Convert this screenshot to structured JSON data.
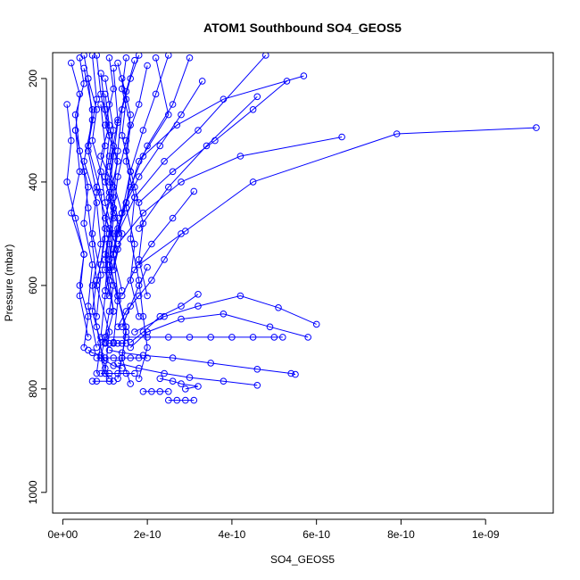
{
  "chart_data": {
    "type": "line",
    "title": "ATOM1 Southbound SO4_GEOS5",
    "xlabel": "SO4_GEOS5",
    "ylabel": "Pressure (mbar)",
    "xlim": [
      -2.4e-11,
      1.16e-09
    ],
    "ylim": [
      1040,
      150
    ],
    "y_reversed": true,
    "grid": false,
    "legend": "none",
    "marker": "open-circle",
    "color": "#0000ff",
    "x_ticks": [
      {
        "value": 0,
        "label": "0e+00"
      },
      {
        "value": 2e-10,
        "label": "2e-10"
      },
      {
        "value": 4e-10,
        "label": "4e-10"
      },
      {
        "value": 6e-10,
        "label": "6e-10"
      },
      {
        "value": 8e-10,
        "label": "8e-10"
      },
      {
        "value": 1e-09,
        "label": "1e-09"
      }
    ],
    "y_ticks": [
      {
        "value": 200,
        "label": "200"
      },
      {
        "value": 400,
        "label": "400"
      },
      {
        "value": 600,
        "label": "600"
      },
      {
        "value": 800,
        "label": "800"
      },
      {
        "value": 1000,
        "label": "1000"
      }
    ],
    "series": [
      {
        "x": [
          1e-10,
          1.1e-10,
          1.2e-10,
          1.1e-10,
          1e-10,
          1.2e-10,
          1.1e-10,
          1e-10,
          1.2e-10,
          1.1e-10,
          1e-10,
          9e-11,
          1e-10,
          1.1e-10
        ],
        "y": [
          200,
          250,
          300,
          350,
          400,
          450,
          500,
          550,
          600,
          650,
          700,
          740,
          770,
          780
        ]
      },
      {
        "x": [
          5e-11,
          6e-11,
          8e-11,
          7e-11,
          9e-11,
          1e-10,
          1.2e-10,
          1.1e-10,
          1.3e-10,
          1.5e-10,
          1.4e-10,
          1.3e-10
        ],
        "y": [
          155,
          200,
          260,
          320,
          380,
          440,
          500,
          560,
          620,
          680,
          740,
          780
        ]
      },
      {
        "x": [
          2e-11,
          4e-11,
          3e-11,
          5e-11,
          6e-11,
          7e-11,
          8e-11,
          7e-11,
          9e-11,
          8e-11
        ],
        "y": [
          170,
          230,
          300,
          380,
          450,
          520,
          590,
          650,
          710,
          770
        ]
      },
      {
        "x": [
          1.5e-10,
          1.4e-10,
          1.6e-10,
          1.5e-10,
          1.7e-10,
          1.6e-10,
          1.8e-10,
          1.9e-10,
          2e-10,
          1.8e-10
        ],
        "y": [
          160,
          220,
          290,
          360,
          430,
          510,
          590,
          660,
          720,
          780
        ]
      },
      {
        "x": [
          1e-11,
          2e-11,
          1e-11,
          3e-11,
          5e-11,
          4e-11,
          6e-11,
          5e-11
        ],
        "y": [
          250,
          320,
          400,
          470,
          540,
          600,
          660,
          720
        ]
      },
      {
        "x": [
          2.2e-10,
          2.5e-10,
          1.8e-10,
          1.5e-10,
          1.2e-10,
          1e-10,
          9e-11
        ],
        "y": [
          160,
          270,
          360,
          440,
          530,
          620,
          700
        ]
      },
      {
        "x": [
          1.2e-10,
          1.3e-10,
          1.1e-10,
          1.4e-10,
          1.2e-10,
          1.3e-10,
          1.5e-10,
          1.4e-10,
          1.6e-10
        ],
        "y": [
          180,
          280,
          370,
          460,
          540,
          620,
          690,
          740,
          790
        ]
      },
      {
        "x": [
          7e-11,
          8e-11,
          6e-11,
          9e-11,
          1e-10,
          8e-11,
          1.1e-10,
          1e-10
        ],
        "y": [
          155,
          240,
          330,
          420,
          510,
          600,
          690,
          770
        ]
      },
      {
        "x": [
          1.8e-10,
          1.6e-10,
          1.4e-10,
          1.3e-10,
          1.2e-10,
          1.1e-10,
          1e-10
        ],
        "y": [
          155,
          200,
          260,
          340,
          430,
          520,
          610
        ]
      },
      {
        "x": [
          4e-11,
          5e-11,
          3e-11,
          4e-11,
          6e-11,
          5e-11,
          7e-11,
          6e-11,
          8e-11
        ],
        "y": [
          160,
          210,
          270,
          340,
          410,
          480,
          560,
          640,
          720
        ]
      },
      {
        "x": [
          1e-10,
          1.1e-10,
          9e-11,
          1.2e-10,
          1e-10,
          1.3e-10,
          1.1e-10,
          1.2e-10,
          1e-10
        ],
        "y": [
          230,
          290,
          350,
          410,
          470,
          530,
          590,
          650,
          710
        ]
      },
      {
        "x": [
          3e-10,
          2.6e-10,
          2e-10,
          1.6e-10,
          1.3e-10,
          1.1e-10
        ],
        "y": [
          160,
          250,
          330,
          410,
          490,
          570
        ]
      },
      {
        "x": [
          9e-11,
          1e-10,
          1.2e-10,
          1.1e-10,
          1.3e-10,
          1.2e-10,
          1.4e-10
        ],
        "y": [
          190,
          260,
          330,
          400,
          470,
          540,
          610
        ]
      },
      {
        "x": [
          6e-11,
          7e-11,
          5e-11,
          8e-11,
          9e-11,
          7e-11,
          8e-11,
          1e-10
        ],
        "y": [
          200,
          280,
          360,
          440,
          520,
          600,
          680,
          760
        ]
      },
      {
        "x": [
          1.3e-10,
          1.5e-10,
          1.4e-10,
          1.6e-10,
          1.5e-10,
          1.7e-10,
          1.6e-10,
          1.8e-10
        ],
        "y": [
          170,
          240,
          310,
          380,
          450,
          520,
          590,
          660
        ]
      },
      {
        "x": [
          3e-11,
          4e-11,
          2e-11,
          5e-11,
          4e-11,
          6e-11
        ],
        "y": [
          300,
          380,
          460,
          540,
          620,
          700
        ]
      },
      {
        "x": [
          8e-11,
          9e-11,
          1.1e-10,
          1e-10,
          1.2e-10,
          1.1e-10,
          1.3e-10,
          1.2e-10
        ],
        "y": [
          155,
          230,
          310,
          390,
          470,
          550,
          630,
          710
        ]
      },
      {
        "x": [
          2e-10,
          1.8e-10,
          1.5e-10,
          1.3e-10,
          1.2e-10,
          1e-10,
          1.1e-10
        ],
        "y": [
          175,
          250,
          320,
          390,
          460,
          540,
          620
        ]
      },
      {
        "x": [
          1.1e-10,
          1.2e-10,
          1e-10,
          1.3e-10,
          1.1e-10,
          1.4e-10,
          1.2e-10
        ],
        "y": [
          160,
          220,
          290,
          360,
          430,
          500,
          570
        ]
      },
      {
        "x": [
          5e-11,
          7e-11,
          6e-11,
          8e-11,
          7e-11,
          9e-11,
          8e-11
        ],
        "y": [
          180,
          260,
          340,
          420,
          500,
          580,
          660
        ]
      },
      {
        "x": [
          2.5e-10,
          2.2e-10,
          1.9e-10,
          1.6e-10,
          1.4e-10,
          1.2e-10
        ],
        "y": [
          155,
          230,
          300,
          380,
          460,
          540
        ]
      },
      {
        "x": [
          1.4e-10,
          1.6e-10,
          1.5e-10,
          1.7e-10,
          1.9e-10,
          1.8e-10,
          2e-10
        ],
        "y": [
          200,
          270,
          340,
          410,
          480,
          550,
          620
        ]
      },
      {
        "x": [
          9e-11,
          1e-10,
          8e-11,
          1.1e-10,
          1e-10,
          1.2e-10
        ],
        "y": [
          250,
          330,
          410,
          490,
          570,
          650
        ]
      },
      {
        "x": [
          1.7e-10,
          1.5e-10,
          1.3e-10,
          1.2e-10,
          1.1e-10,
          1e-10,
          9e-11
        ],
        "y": [
          165,
          225,
          285,
          350,
          420,
          490,
          560
        ]
      },
      {
        "x": [
          3.3e-10,
          2.8e-10,
          2.3e-10,
          1.8e-10,
          1.5e-10,
          1.3e-10
        ],
        "y": [
          205,
          270,
          330,
          390,
          440,
          500
        ]
      },
      {
        "x": [
          4.6e-10,
          3.4e-10,
          2.5e-10,
          1.8e-10
        ],
        "y": [
          235,
          330,
          410,
          490
        ]
      },
      {
        "x": [
          4.8e-10,
          3.2e-10,
          2.4e-10,
          1.7e-10,
          1.3e-10
        ],
        "y": [
          155,
          300,
          360,
          430,
          500
        ]
      },
      {
        "x": [
          5.3e-10,
          4.5e-10,
          3.6e-10,
          2.6e-10,
          1.8e-10
        ],
        "y": [
          205,
          260,
          320,
          380,
          440
        ]
      },
      {
        "x": [
          5.7e-10,
          3.8e-10,
          2.7e-10,
          1.9e-10
        ],
        "y": [
          195,
          240,
          290,
          350
        ]
      },
      {
        "x": [
          1.12e-09,
          7.9e-10,
          4.5e-10,
          2.9e-10,
          1.8e-10
        ],
        "y": [
          295,
          307,
          400,
          495,
          560
        ]
      },
      {
        "x": [
          6.6e-10,
          4.2e-10,
          2.8e-10,
          1.9e-10,
          1.3e-10
        ],
        "y": [
          313,
          350,
          400,
          460,
          520
        ]
      },
      {
        "x": [
          3.1e-10,
          2.6e-10,
          2.1e-10,
          1.7e-10,
          1.4e-10
        ],
        "y": [
          418,
          470,
          520,
          570,
          620
        ]
      },
      {
        "x": [
          2.8e-10,
          2.4e-10,
          2.1e-10,
          1.8e-10,
          1.5e-10,
          1.3e-10
        ],
        "y": [
          500,
          550,
          590,
          620,
          650,
          680
        ]
      },
      {
        "x": [
          2e-10,
          1.8e-10,
          1.6e-10,
          1.4e-10
        ],
        "y": [
          565,
          600,
          640,
          680
        ]
      },
      {
        "x": [
          3.2e-10,
          2.8e-10,
          2.3e-10,
          1.9e-10,
          1.6e-10
        ],
        "y": [
          617,
          640,
          660,
          690,
          710
        ]
      },
      {
        "x": [
          6e-10,
          5.1e-10,
          4.2e-10,
          3.2e-10,
          2.4e-10,
          1.7e-10
        ],
        "y": [
          675,
          643,
          620,
          640,
          660,
          690
        ]
      },
      {
        "x": [
          5.8e-10,
          4.9e-10,
          3.8e-10,
          2.8e-10,
          2e-10,
          1.6e-10
        ],
        "y": [
          700,
          680,
          655,
          665,
          690,
          720
        ]
      },
      {
        "x": [
          1e-10,
          1.5e-10,
          2e-10,
          2.5e-10,
          3e-10,
          3.5e-10,
          4e-10,
          4.5e-10,
          5e-10,
          5.2e-10
        ],
        "y": [
          700,
          700,
          700,
          700,
          700,
          700,
          700,
          700,
          700,
          700
        ]
      },
      {
        "x": [
          5.5e-10,
          5.4e-10,
          4.6e-10,
          3.5e-10,
          2.6e-10,
          1.9e-10,
          1.4e-10,
          1.1e-10
        ],
        "y": [
          772,
          770,
          762,
          750,
          740,
          735,
          730,
          725
        ]
      },
      {
        "x": [
          4.6e-10,
          3.8e-10,
          3e-10,
          2.4e-10,
          1.8e-10,
          1.3e-10
        ],
        "y": [
          793,
          785,
          778,
          770,
          760,
          750
        ]
      },
      {
        "x": [
          8e-11,
          1e-10,
          1.2e-10,
          1.4e-10,
          1.6e-10,
          1.8e-10,
          2e-10
        ],
        "y": [
          740,
          740,
          740,
          740,
          740,
          740,
          740
        ]
      },
      {
        "x": [
          9e-11,
          1.1e-10,
          1.3e-10,
          1.5e-10,
          1.7e-10
        ],
        "y": [
          770,
          770,
          770,
          770,
          770
        ]
      },
      {
        "x": [
          1e-10,
          1.1e-10,
          1.2e-10,
          1.3e-10,
          1.4e-10,
          1.5e-10
        ],
        "y": [
          712,
          712,
          712,
          712,
          712,
          712
        ]
      },
      {
        "x": [
          2.5e-10,
          2.7e-10,
          2.9e-10,
          3.1e-10
        ],
        "y": [
          822,
          822,
          822,
          822
        ]
      },
      {
        "x": [
          1.9e-10,
          2.1e-10,
          2.3e-10,
          2.5e-10
        ],
        "y": [
          805,
          805,
          805,
          805
        ]
      },
      {
        "x": [
          7e-11,
          8e-11,
          1.1e-10,
          1.2e-10
        ],
        "y": [
          785,
          785,
          785,
          785
        ]
      },
      {
        "x": [
          2.3e-10,
          2.6e-10,
          2.8e-10,
          3.2e-10,
          2.9e-10
        ],
        "y": [
          780,
          785,
          790,
          795,
          800
        ]
      },
      {
        "x": [
          6e-11,
          7e-11,
          9e-11,
          1e-10,
          1.2e-10,
          1.4e-10
        ],
        "y": [
          725,
          730,
          735,
          745,
          755,
          760
        ]
      }
    ]
  }
}
